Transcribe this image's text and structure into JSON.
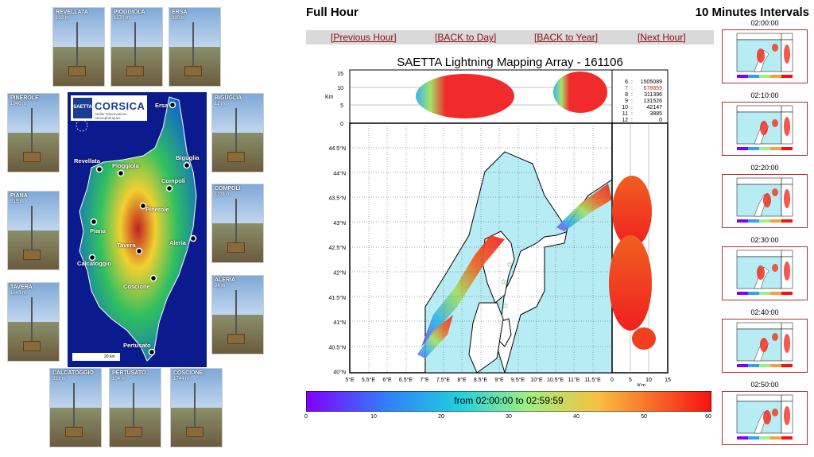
{
  "stations": [
    {
      "name": "REVELLATA",
      "alt": "102 m"
    },
    {
      "name": "PIOGGIOLA",
      "alt": "1270 m"
    },
    {
      "name": "ERSA",
      "alt": "390 m"
    },
    {
      "name": "PINEROLE",
      "alt": "1940 m"
    },
    {
      "name": "BIGUGLIA",
      "alt": "11 m"
    },
    {
      "name": "PIANA",
      "alt": "815 m"
    },
    {
      "name": "COMPOLI",
      "alt": "1231 m"
    },
    {
      "name": "TAVERA",
      "alt": "1643 m"
    },
    {
      "name": "ALERIA",
      "alt": "24 m"
    },
    {
      "name": "CALCATOGGIO",
      "alt": "331 m"
    },
    {
      "name": "PERTUSATO",
      "alt": "104 m"
    },
    {
      "name": "COSCIONE",
      "alt": "1744 m"
    }
  ],
  "map_sites": [
    "Ersa",
    "Revellata",
    "Pioggiola",
    "Biguglia",
    "Compoli",
    "Pinerole",
    "Piana",
    "Tavera",
    "Aleria",
    "Calcatoggio",
    "Coscione",
    "Pertusato"
  ],
  "logo": {
    "name": "CORSICA",
    "badge": "SAETTA",
    "subtitle": "Atelier Observations Atmosphériques",
    "scale": "20 km"
  },
  "header": {
    "full_hour": "Full Hour",
    "ten_minutes": "10 Minutes Intervals"
  },
  "nav": {
    "prev_hour": "[Previous Hour]",
    "back_day": "[BACK to Day]",
    "back_year": "[BACK to Year]",
    "next_hour": "[Next Hour]"
  },
  "plot": {
    "title": "SAETTA Lightning Mapping Array - 161106",
    "km_label": "Km",
    "top_yticks": [
      "15",
      "10",
      "5",
      "0"
    ],
    "lat_ticks": [
      "44.5°N",
      "44°N",
      "43.5°N",
      "43°N",
      "42.5°N",
      "42°N",
      "41.5°N",
      "41°N",
      "40.5°N",
      "40°N"
    ],
    "lon_ticks": [
      "5°E",
      "5.5°E",
      "6°E",
      "6.5°E",
      "7°E",
      "7.5°E",
      "8°E",
      "8.5°E",
      "9°E",
      "9.5°E",
      "10°E",
      "10.5°E",
      "11°E",
      "11.5°E"
    ],
    "side_xticks": [
      "0",
      "5",
      "10",
      "15"
    ],
    "station_counts": [
      {
        "n": "6",
        "count": "1505089",
        "color": "#000000"
      },
      {
        "n": "7",
        "count": "678859",
        "color": "#d02020"
      },
      {
        "n": "8",
        "count": "311396",
        "color": "#000000"
      },
      {
        "n": "9",
        "count": "131526",
        "color": "#000000"
      },
      {
        "n": "10",
        "count": "42147",
        "color": "#000000"
      },
      {
        "n": "11",
        "count": "3885",
        "color": "#000000"
      },
      {
        "n": "12",
        "count": "0",
        "color": "#000000"
      }
    ]
  },
  "colorbar": {
    "label": "from 02:00:00 to 02:59:59",
    "ticks": [
      "0",
      "10",
      "20",
      "30",
      "40",
      "50",
      "60"
    ]
  },
  "thumbnails": [
    {
      "time": "02:00:00"
    },
    {
      "time": "02:10:00"
    },
    {
      "time": "02:20:00"
    },
    {
      "time": "02:30:00"
    },
    {
      "time": "02:40:00"
    },
    {
      "time": "02:50:00"
    }
  ]
}
